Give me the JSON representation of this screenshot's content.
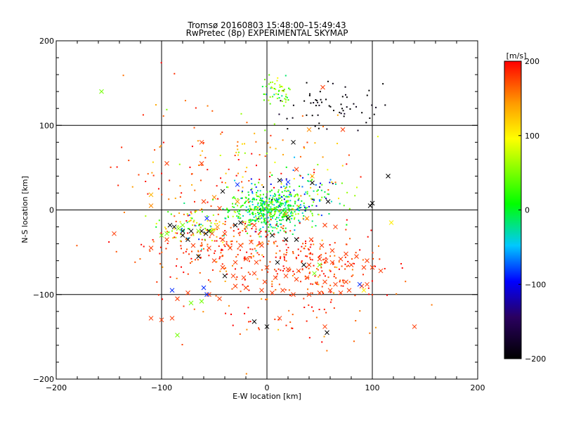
{
  "chart_data": {
    "type": "scatter",
    "title": "Tromsø 20160803 15:48:00–15:49:43",
    "subtitle": "RwPretec (8p) EXPERIMENTAL SKYMAP",
    "xlabel": "E-W location [km]",
    "ylabel": "N-S location [km]",
    "xlim": [
      -200,
      200
    ],
    "ylim": [
      -200,
      200
    ],
    "xticks": [
      -200,
      -100,
      0,
      100,
      200
    ],
    "yticks": [
      -200,
      -100,
      0,
      100,
      200
    ],
    "x_tick_labels": [
      "−200",
      "−100",
      "0",
      "100",
      "200"
    ],
    "y_tick_labels": [
      "−200",
      "−100",
      "0",
      "100",
      "200"
    ],
    "grid": true,
    "colorbar": {
      "label": "[m/s]",
      "range": [
        -200,
        200
      ],
      "ticks": [
        -200,
        -100,
        0,
        100,
        200
      ],
      "tick_labels": [
        "−200",
        "−100",
        "0",
        "100",
        "200"
      ],
      "colors": [
        "#000000",
        "#2a0060",
        "#0000ff",
        "#00c8ff",
        "#00ff00",
        "#ffff00",
        "#ff9900",
        "#ff0000"
      ]
    },
    "crosses": [
      [
        -157,
        140,
        40
      ],
      [
        53,
        145,
        180
      ],
      [
        72,
        95,
        180
      ],
      [
        40,
        95,
        150
      ],
      [
        25,
        80,
        -200
      ],
      [
        -62,
        80,
        180
      ],
      [
        -95,
        55,
        180
      ],
      [
        -62,
        55,
        180
      ],
      [
        28,
        48,
        180
      ],
      [
        43,
        40,
        130
      ],
      [
        20,
        33,
        -90
      ],
      [
        12,
        35,
        -200
      ],
      [
        43,
        32,
        -200
      ],
      [
        115,
        40,
        -200
      ],
      [
        -42,
        22,
        -200
      ],
      [
        -60,
        10,
        180
      ],
      [
        -28,
        10,
        150
      ],
      [
        -110,
        18,
        130
      ],
      [
        -28,
        30,
        -90
      ],
      [
        -110,
        5,
        150
      ],
      [
        98,
        5,
        -200
      ],
      [
        100,
        8,
        -200
      ],
      [
        58,
        10,
        -200
      ],
      [
        -45,
        2,
        180
      ],
      [
        -50,
        15,
        150
      ],
      [
        -57,
        -10,
        -90
      ],
      [
        -92,
        -18,
        -200
      ],
      [
        -88,
        -20,
        -200
      ],
      [
        -80,
        -25,
        -200
      ],
      [
        -72,
        -25,
        -200
      ],
      [
        -62,
        -25,
        -200
      ],
      [
        -55,
        -25,
        -200
      ],
      [
        -58,
        -28,
        -200
      ],
      [
        -52,
        -28,
        180
      ],
      [
        -47,
        -20,
        150
      ],
      [
        -30,
        -18,
        -200
      ],
      [
        -25,
        -15,
        -200
      ],
      [
        -20,
        -20,
        130
      ],
      [
        -12,
        -18,
        180
      ],
      [
        -40,
        -28,
        180
      ],
      [
        -84,
        -22,
        40
      ],
      [
        -80,
        -30,
        -200
      ],
      [
        -75,
        -35,
        -200
      ],
      [
        -95,
        -28,
        40
      ],
      [
        -100,
        -30,
        40
      ],
      [
        -80,
        -18,
        40
      ],
      [
        -65,
        -25,
        40
      ],
      [
        -53,
        -25,
        40
      ],
      [
        20,
        -10,
        -200
      ],
      [
        18,
        -5,
        150
      ],
      [
        38,
        -10,
        150
      ],
      [
        55,
        -18,
        180
      ],
      [
        65,
        -20,
        180
      ],
      [
        118,
        -15,
        100
      ],
      [
        -145,
        -28,
        180
      ],
      [
        -110,
        -45,
        180
      ],
      [
        -95,
        -35,
        180
      ],
      [
        -70,
        -42,
        180
      ],
      [
        -55,
        -45,
        180
      ],
      [
        -42,
        -35,
        180
      ],
      [
        -35,
        -45,
        180
      ],
      [
        -25,
        -42,
        180
      ],
      [
        -15,
        -38,
        180
      ],
      [
        -5,
        -42,
        180
      ],
      [
        5,
        -30,
        -200
      ],
      [
        18,
        -35,
        -200
      ],
      [
        28,
        -35,
        -200
      ],
      [
        42,
        -35,
        180
      ],
      [
        52,
        -42,
        180
      ],
      [
        62,
        -48,
        180
      ],
      [
        75,
        -52,
        180
      ],
      [
        85,
        -55,
        180
      ],
      [
        95,
        -60,
        180
      ],
      [
        100,
        -68,
        180
      ],
      [
        108,
        -72,
        180
      ],
      [
        -65,
        -55,
        -200
      ],
      [
        -50,
        -60,
        180
      ],
      [
        -42,
        -68,
        180
      ],
      [
        -30,
        -62,
        180
      ],
      [
        -20,
        -58,
        180
      ],
      [
        -10,
        -62,
        180
      ],
      [
        0,
        -68,
        180
      ],
      [
        10,
        -62,
        -200
      ],
      [
        20,
        -70,
        180
      ],
      [
        30,
        -72,
        180
      ],
      [
        40,
        -65,
        180
      ],
      [
        50,
        -58,
        180
      ],
      [
        56,
        -60,
        180
      ],
      [
        62,
        -62,
        180
      ],
      [
        70,
        -58,
        180
      ],
      [
        80,
        -65,
        180
      ],
      [
        92,
        -68,
        180
      ],
      [
        -32,
        -78,
        180
      ],
      [
        -22,
        -80,
        180
      ],
      [
        -12,
        -75,
        180
      ],
      [
        -2,
        -85,
        180
      ],
      [
        8,
        -80,
        180
      ],
      [
        18,
        -78,
        180
      ],
      [
        28,
        -82,
        180
      ],
      [
        38,
        -80,
        180
      ],
      [
        45,
        -75,
        40
      ],
      [
        55,
        -85,
        180
      ],
      [
        65,
        -88,
        180
      ],
      [
        75,
        -85,
        180
      ],
      [
        90,
        -90,
        180
      ],
      [
        95,
        -88,
        180
      ],
      [
        88,
        -88,
        -90
      ],
      [
        -40,
        -78,
        -200
      ],
      [
        -30,
        -90,
        180
      ],
      [
        -20,
        -92,
        180
      ],
      [
        -5,
        -95,
        180
      ],
      [
        5,
        -98,
        180
      ],
      [
        15,
        -95,
        180
      ],
      [
        25,
        -100,
        180
      ],
      [
        40,
        -100,
        180
      ],
      [
        50,
        -98,
        180
      ],
      [
        60,
        -95,
        180
      ],
      [
        70,
        -98,
        180
      ],
      [
        78,
        -95,
        180
      ],
      [
        92,
        -95,
        100
      ],
      [
        -90,
        -95,
        -90
      ],
      [
        -75,
        -98,
        180
      ],
      [
        -55,
        -100,
        180
      ],
      [
        -45,
        -105,
        180
      ],
      [
        -62,
        -108,
        40
      ],
      [
        -72,
        -110,
        40
      ],
      [
        -60,
        -92,
        -90
      ],
      [
        -57,
        -100,
        -90
      ],
      [
        -90,
        -128,
        180
      ],
      [
        -85,
        -105,
        180
      ],
      [
        -110,
        -128,
        180
      ],
      [
        -100,
        -130,
        180
      ],
      [
        -85,
        -148,
        40
      ],
      [
        -12,
        -132,
        -200
      ],
      [
        0,
        -138,
        -200
      ],
      [
        12,
        -128,
        180
      ],
      [
        55,
        -138,
        180
      ],
      [
        57,
        -145,
        -200
      ],
      [
        140,
        -138,
        180
      ],
      [
        35,
        -65,
        -200
      ],
      [
        50,
        -65,
        40
      ]
    ]
  }
}
